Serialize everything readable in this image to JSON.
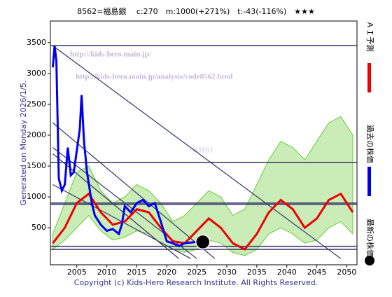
{
  "chart_data": {
    "type": "line",
    "title": "8562=福島銀　 c:270　m:1000(+271%)　t:-43(-116%)　★★★",
    "side_note": "Generated on Monday 2026/1/5.",
    "copyright": "Copyright (c) Kids-Hero Research Institute. All Rights Reserved.",
    "watermarks": [
      "http://kids-hero.main.jp/",
      "http://kids-hero.main.jp/analysis/code8562.html",
      "KHRI"
    ],
    "xlim": [
      2000.6,
      2051.7
    ],
    "ylim": [
      -100,
      3850
    ],
    "xticks": [
      2005,
      2010,
      2015,
      2020,
      2025,
      2030,
      2035,
      2040,
      2045,
      2050
    ],
    "yticks": [
      500,
      1000,
      1500,
      2000,
      2500,
      3000,
      3500
    ],
    "series": [
      {
        "name": "過去の株価",
        "color": "#0000ee",
        "x": [
          2001.0,
          2001.3,
          2001.6,
          2002.0,
          2002.5,
          2003.0,
          2003.5,
          2004.0,
          2004.5,
          2005.5,
          2005.8,
          2006.2,
          2006.7,
          2007.5,
          2008.0,
          2009.0,
          2010.0,
          2011.0,
          2012.0,
          2012.5,
          2013.0,
          2014.0,
          2015.0,
          2016.0,
          2017.0,
          2018.0,
          2019.0,
          2020.0,
          2021.0,
          2022.0,
          2023.0,
          2024.0,
          2025.0
        ],
        "values": [
          3100,
          3450,
          3200,
          1300,
          1100,
          1200,
          1800,
          1350,
          1400,
          2100,
          2650,
          1900,
          1400,
          900,
          700,
          550,
          450,
          480,
          400,
          550,
          850,
          750,
          900,
          950,
          850,
          900,
          600,
          280,
          250,
          200,
          250,
          260,
          270
        ]
      },
      {
        "name": "ＡＩ予測",
        "color": "#ee0000",
        "x": [
          2001,
          2003,
          2005,
          2007,
          2009,
          2011,
          2013,
          2015,
          2017,
          2019,
          2021,
          2023,
          2025,
          2027,
          2029,
          2031,
          2033,
          2035,
          2037,
          2039,
          2041,
          2043,
          2045,
          2047,
          2049,
          2051
        ],
        "values": [
          250,
          500,
          900,
          1050,
          750,
          550,
          600,
          800,
          750,
          500,
          280,
          250,
          450,
          650,
          500,
          250,
          150,
          400,
          750,
          950,
          800,
          500,
          650,
          950,
          1050,
          750
        ]
      }
    ],
    "band": {
      "color": "#66cc33",
      "x": [
        2001,
        2003,
        2005,
        2007,
        2009,
        2011,
        2013,
        2015,
        2017,
        2019,
        2021,
        2023,
        2025,
        2027,
        2029,
        2031,
        2033,
        2035,
        2037,
        2039,
        2041,
        2043,
        2045,
        2047,
        2049,
        2051
      ],
      "upper": [
        400,
        900,
        1400,
        1500,
        1100,
        900,
        1000,
        1200,
        1100,
        900,
        600,
        700,
        900,
        1100,
        1000,
        700,
        800,
        1200,
        1600,
        1900,
        1800,
        1600,
        1900,
        2200,
        2300,
        2000
      ],
      "lower": [
        150,
        300,
        500,
        700,
        450,
        300,
        350,
        450,
        400,
        250,
        150,
        100,
        150,
        300,
        250,
        100,
        50,
        150,
        400,
        500,
        400,
        250,
        300,
        500,
        600,
        400
      ]
    },
    "latest": {
      "name": "最新の株価",
      "x": 2026,
      "value": 270
    },
    "hlines": [
      3450,
      1560,
      900,
      880,
      200,
      150
    ],
    "trendlines": [
      [
        2001,
        3450,
        2049,
        0
      ],
      [
        2001,
        2200,
        2028,
        0
      ],
      [
        2001,
        1800,
        2025,
        0
      ],
      [
        2001,
        1700,
        2022,
        0
      ],
      [
        2001,
        1200,
        2024,
        0
      ]
    ]
  }
}
